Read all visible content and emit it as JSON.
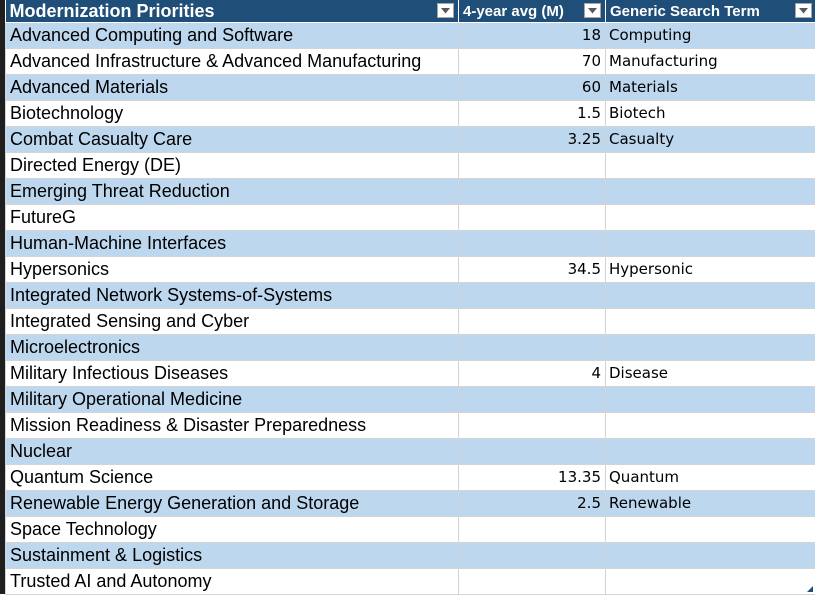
{
  "table": {
    "headers": {
      "priorities": "Modernization Priorities",
      "avg": "4-year avg (M)",
      "term": "Generic Search Term"
    },
    "filter_icon": "dropdown-arrow",
    "rows": [
      {
        "priority": "Advanced Computing and Software",
        "avg": "18",
        "term": "Computing"
      },
      {
        "priority": "Advanced Infrastructure & Advanced Manufacturing",
        "avg": "70",
        "term": "Manufacturing"
      },
      {
        "priority": "Advanced Materials",
        "avg": "60",
        "term": "Materials"
      },
      {
        "priority": "Biotechnology",
        "avg": "1.5",
        "term": "Biotech"
      },
      {
        "priority": "Combat Casualty Care",
        "avg": "3.25",
        "term": "Casualty"
      },
      {
        "priority": "Directed Energy (DE)",
        "avg": "",
        "term": ""
      },
      {
        "priority": "Emerging Threat Reduction",
        "avg": "",
        "term": ""
      },
      {
        "priority": "FutureG",
        "avg": "",
        "term": ""
      },
      {
        "priority": "Human-Machine Interfaces",
        "avg": "",
        "term": ""
      },
      {
        "priority": "Hypersonics",
        "avg": "34.5",
        "term": "Hypersonic"
      },
      {
        "priority": "Integrated Network Systems-of-Systems",
        "avg": "",
        "term": ""
      },
      {
        "priority": "Integrated Sensing and Cyber",
        "avg": "",
        "term": ""
      },
      {
        "priority": "Microelectronics",
        "avg": "",
        "term": ""
      },
      {
        "priority": "Military Infectious Diseases",
        "avg": "4",
        "term": "Disease"
      },
      {
        "priority": "Military Operational Medicine",
        "avg": "",
        "term": ""
      },
      {
        "priority": "Mission Readiness & Disaster Preparedness",
        "avg": "",
        "term": ""
      },
      {
        "priority": "Nuclear",
        "avg": "",
        "term": ""
      },
      {
        "priority": "Quantum Science",
        "avg": "13.35",
        "term": "Quantum"
      },
      {
        "priority": "Renewable Energy Generation and Storage",
        "avg": "2.5",
        "term": "Renewable"
      },
      {
        "priority": "Space Technology",
        "avg": "",
        "term": ""
      },
      {
        "priority": "Sustainment & Logistics",
        "avg": "",
        "term": ""
      },
      {
        "priority": "Trusted AI and Autonomy",
        "avg": "",
        "term": ""
      }
    ]
  },
  "colors": {
    "header_bg": "#1f4e78",
    "band_row": "#bdd7ee",
    "plain_row": "#ffffff"
  }
}
